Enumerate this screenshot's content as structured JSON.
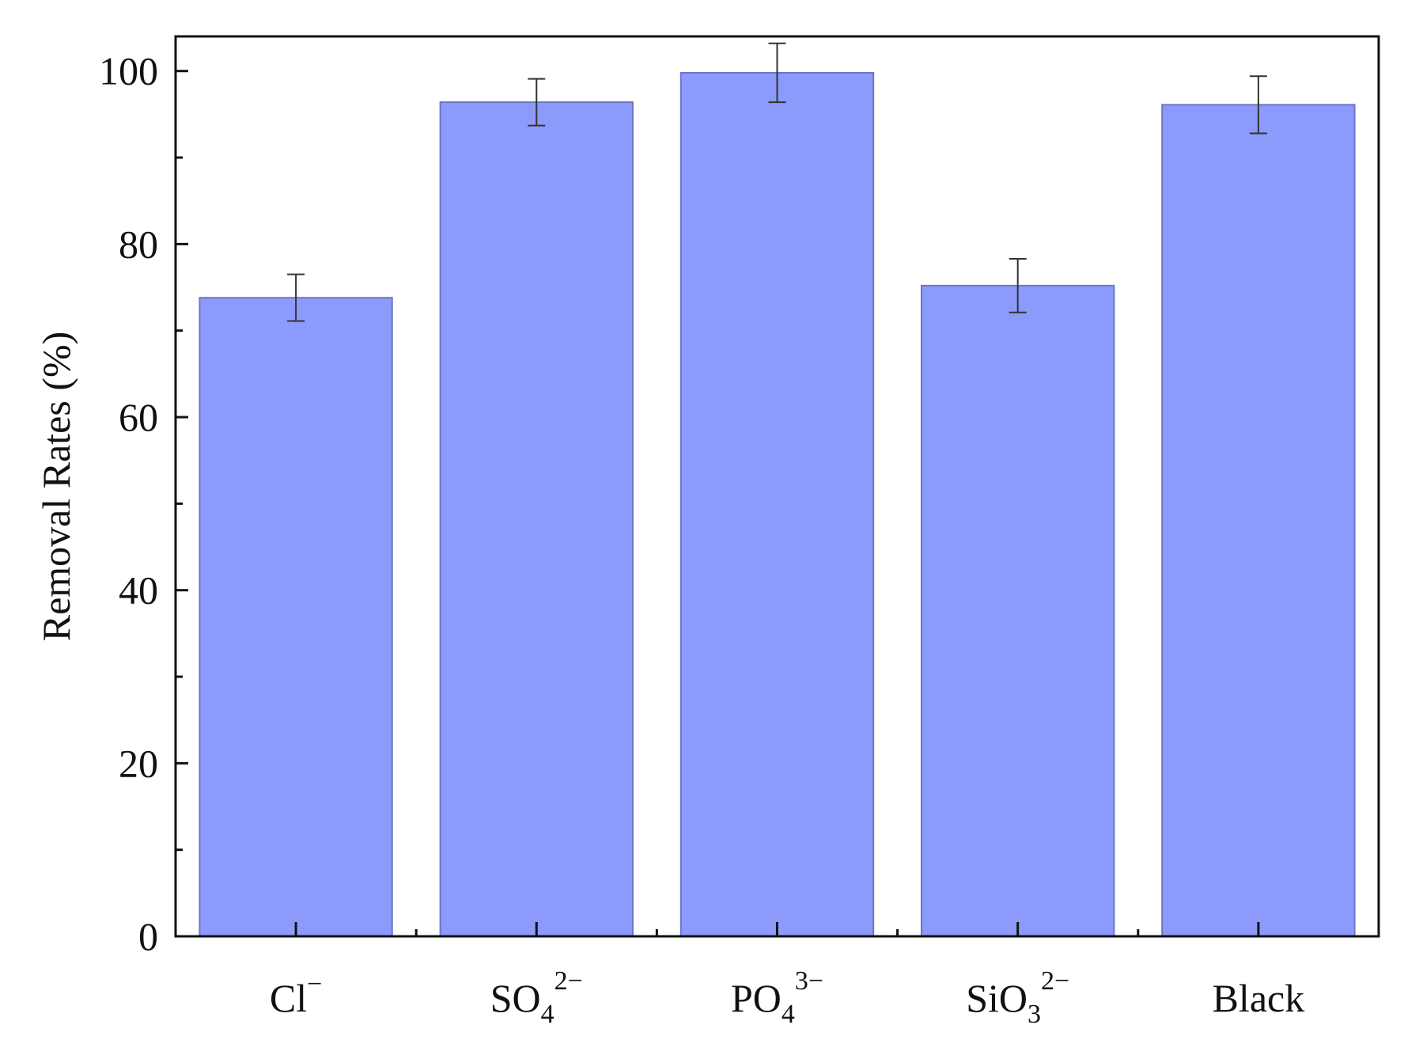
{
  "chart_data": {
    "type": "bar",
    "categories": [
      {
        "base": "Cl",
        "sub": "",
        "sup": "−"
      },
      {
        "base": "SO",
        "sub": "4",
        "sup": "2−"
      },
      {
        "base": "PO",
        "sub": "4",
        "sup": "3−"
      },
      {
        "base": "SiO",
        "sub": "3",
        "sup": "2−"
      },
      {
        "base": "Black",
        "sub": "",
        "sup": ""
      }
    ],
    "series": [
      {
        "values": [
          73.8,
          96.4,
          99.8,
          75.2,
          96.1
        ],
        "errors": [
          2.7,
          2.7,
          3.4,
          3.1,
          3.3
        ]
      }
    ],
    "title": "",
    "xlabel": "",
    "ylabel": "Removal Rates (%)",
    "ylim": [
      0,
      104
    ],
    "yticks": [
      0,
      20,
      40,
      60,
      80,
      100
    ],
    "yticks_minor": [
      10,
      30,
      50,
      70,
      90
    ],
    "grid": false,
    "legend": "none",
    "colors": {
      "bar_fill": "#8c9afc",
      "bar_stroke": "#6b76c8",
      "axis": "#111111",
      "error_bar": "#333333"
    }
  }
}
